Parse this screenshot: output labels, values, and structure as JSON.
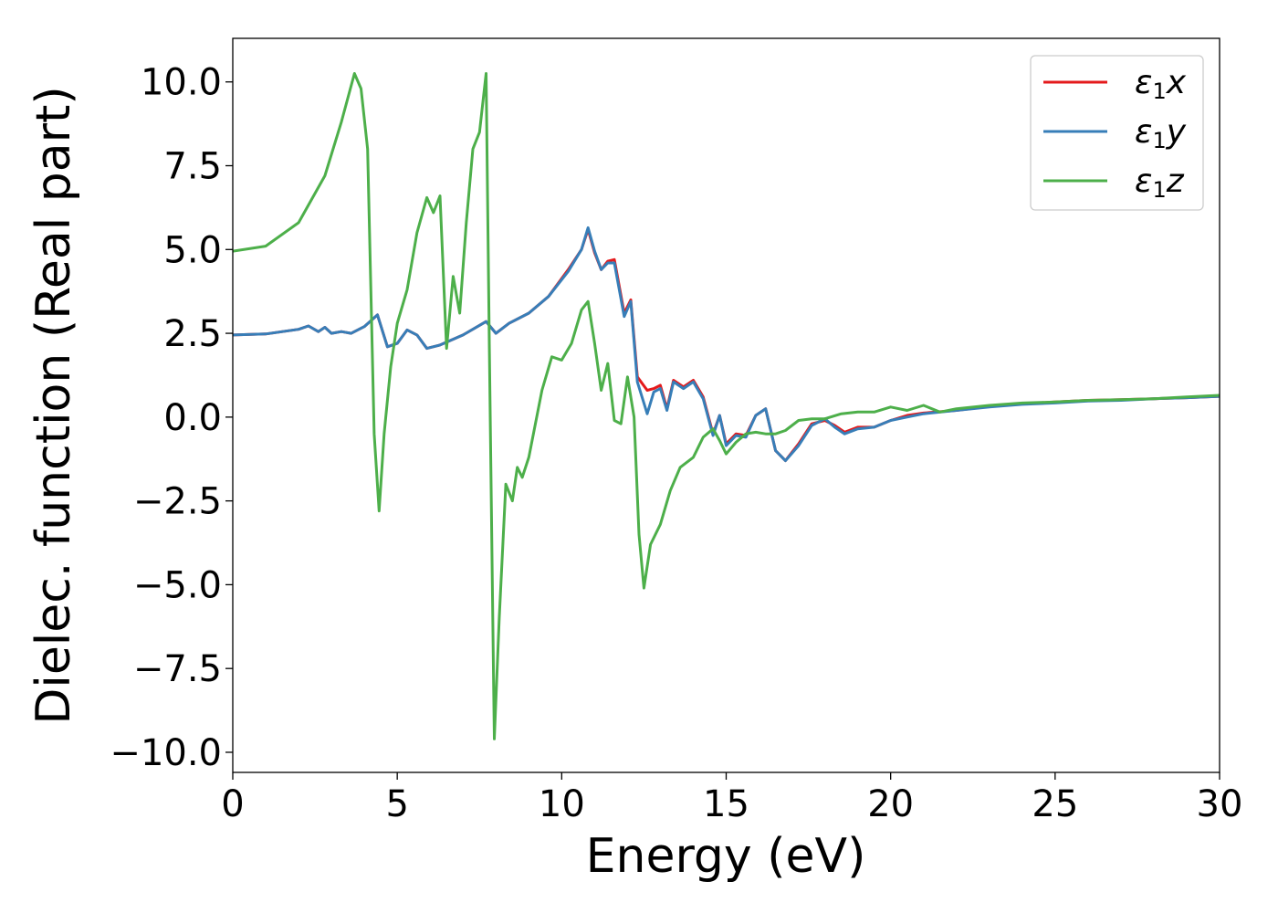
{
  "chart_data": {
    "type": "line",
    "xlabel": "Energy (eV)",
    "ylabel": "Dielec. function (Real part)",
    "xlim": [
      0,
      30
    ],
    "ylim": [
      -10.6,
      11.3
    ],
    "xticks": [
      0,
      5,
      10,
      15,
      20,
      25,
      30
    ],
    "xtick_labels": [
      "0",
      "5",
      "10",
      "15",
      "20",
      "25",
      "30"
    ],
    "yticks": [
      -10,
      -7.5,
      -5,
      -2.5,
      0,
      2.5,
      5,
      7.5,
      10
    ],
    "ytick_labels": [
      "−10.0",
      "−7.5",
      "−5.0",
      "−2.5",
      "0.0",
      "2.5",
      "5.0",
      "7.5",
      "10.0"
    ],
    "grid": false,
    "legend_position": "top-right",
    "series": [
      {
        "name": "ε₁x",
        "legend": {
          "base": "ε",
          "sub": "1",
          "var": "x"
        },
        "color": "#e41a1c",
        "x": [
          0,
          1,
          2,
          2.3,
          2.6,
          2.8,
          3.0,
          3.3,
          3.6,
          4.0,
          4.4,
          4.7,
          5.0,
          5.3,
          5.6,
          5.9,
          6.3,
          7.0,
          7.7,
          8.0,
          8.4,
          9.0,
          9.6,
          10.2,
          10.6,
          10.8,
          11.0,
          11.2,
          11.4,
          11.6,
          11.9,
          12.1,
          12.3,
          12.6,
          12.8,
          13.0,
          13.2,
          13.4,
          13.7,
          14.0,
          14.3,
          14.6,
          14.8,
          15.0,
          15.3,
          15.6,
          15.9,
          16.2,
          16.5,
          16.8,
          17.2,
          17.6,
          18.0,
          18.3,
          18.6,
          19.0,
          19.5,
          20.0,
          20.5,
          21.0,
          22.0,
          23.0,
          24.0,
          25.0,
          26.0,
          27.0,
          28.0,
          29.0,
          30.0
        ],
        "y": [
          2.45,
          2.48,
          2.62,
          2.72,
          2.55,
          2.68,
          2.5,
          2.55,
          2.5,
          2.7,
          3.05,
          2.1,
          2.2,
          2.6,
          2.45,
          2.05,
          2.15,
          2.45,
          2.85,
          2.5,
          2.8,
          3.1,
          3.6,
          4.4,
          5.0,
          5.6,
          4.9,
          4.4,
          4.65,
          4.7,
          3.1,
          3.5,
          1.2,
          0.8,
          0.85,
          0.95,
          0.25,
          1.1,
          0.9,
          1.1,
          0.6,
          -0.5,
          0.05,
          -0.8,
          -0.5,
          -0.55,
          0.05,
          0.25,
          -1.0,
          -1.3,
          -0.8,
          -0.2,
          -0.1,
          -0.25,
          -0.45,
          -0.3,
          -0.3,
          -0.1,
          0.05,
          0.12,
          0.2,
          0.32,
          0.4,
          0.45,
          0.5,
          0.52,
          0.55,
          0.58,
          0.62
        ]
      },
      {
        "name": "ε₁y",
        "legend": {
          "base": "ε",
          "sub": "1",
          "var": "y"
        },
        "color": "#377eb8",
        "x": [
          0,
          1,
          2,
          2.3,
          2.6,
          2.8,
          3.0,
          3.3,
          3.6,
          4.0,
          4.4,
          4.7,
          5.0,
          5.3,
          5.6,
          5.9,
          6.3,
          7.0,
          7.7,
          8.0,
          8.4,
          9.0,
          9.6,
          10.2,
          10.6,
          10.8,
          11.0,
          11.2,
          11.4,
          11.6,
          11.9,
          12.1,
          12.3,
          12.6,
          12.8,
          13.0,
          13.2,
          13.4,
          13.7,
          14.0,
          14.3,
          14.6,
          14.8,
          15.0,
          15.3,
          15.6,
          15.9,
          16.2,
          16.5,
          16.8,
          17.2,
          17.6,
          18.0,
          18.3,
          18.6,
          19.0,
          19.5,
          20.0,
          20.5,
          21.0,
          22.0,
          23.0,
          24.0,
          25.0,
          26.0,
          27.0,
          28.0,
          29.0,
          30.0
        ],
        "y": [
          2.45,
          2.48,
          2.62,
          2.72,
          2.55,
          2.68,
          2.5,
          2.55,
          2.5,
          2.7,
          3.05,
          2.1,
          2.2,
          2.6,
          2.45,
          2.05,
          2.15,
          2.45,
          2.85,
          2.5,
          2.8,
          3.1,
          3.6,
          4.35,
          5.0,
          5.65,
          4.95,
          4.4,
          4.6,
          4.6,
          3.0,
          3.45,
          1.05,
          0.1,
          0.75,
          0.85,
          0.2,
          1.05,
          0.85,
          1.05,
          0.55,
          -0.55,
          0.05,
          -0.85,
          -0.55,
          -0.6,
          0.05,
          0.25,
          -1.0,
          -1.3,
          -0.85,
          -0.25,
          -0.05,
          -0.3,
          -0.5,
          -0.35,
          -0.3,
          -0.1,
          0.0,
          0.1,
          0.2,
          0.3,
          0.38,
          0.42,
          0.48,
          0.5,
          0.55,
          0.58,
          0.62
        ]
      },
      {
        "name": "ε₁z",
        "legend": {
          "base": "ε",
          "sub": "1",
          "var": "z"
        },
        "color": "#4daf4a",
        "x": [
          0,
          1,
          2,
          2.8,
          3.3,
          3.7,
          3.9,
          4.1,
          4.3,
          4.45,
          4.6,
          4.8,
          5.0,
          5.3,
          5.6,
          5.9,
          6.1,
          6.3,
          6.5,
          6.7,
          6.9,
          7.1,
          7.3,
          7.5,
          7.7,
          7.8,
          7.95,
          8.1,
          8.3,
          8.5,
          8.65,
          8.8,
          9.0,
          9.2,
          9.4,
          9.7,
          10.0,
          10.3,
          10.6,
          10.8,
          11.0,
          11.2,
          11.4,
          11.6,
          11.8,
          12.0,
          12.2,
          12.35,
          12.5,
          12.7,
          13.0,
          13.3,
          13.6,
          14.0,
          14.3,
          14.6,
          14.8,
          15.0,
          15.3,
          15.6,
          15.9,
          16.2,
          16.5,
          16.8,
          17.2,
          17.6,
          18.0,
          18.5,
          19.0,
          19.5,
          20.0,
          20.5,
          21.0,
          21.5,
          22.0,
          23.0,
          24.0,
          25.0,
          26.0,
          27.0,
          28.0,
          29.0,
          30.0
        ],
        "y": [
          4.95,
          5.1,
          5.8,
          7.2,
          8.8,
          10.25,
          9.8,
          8.0,
          -0.5,
          -2.8,
          -0.5,
          1.5,
          2.8,
          3.8,
          5.5,
          6.55,
          6.1,
          6.6,
          2.05,
          4.2,
          3.1,
          5.8,
          8.0,
          8.5,
          10.25,
          2.0,
          -9.6,
          -6.0,
          -2.0,
          -2.5,
          -1.5,
          -1.8,
          -1.2,
          -0.2,
          0.8,
          1.8,
          1.7,
          2.2,
          3.2,
          3.45,
          2.2,
          0.8,
          1.6,
          -0.1,
          -0.2,
          1.2,
          0.0,
          -3.5,
          -5.1,
          -3.8,
          -3.2,
          -2.2,
          -1.5,
          -1.2,
          -0.6,
          -0.35,
          -0.7,
          -1.1,
          -0.75,
          -0.5,
          -0.45,
          -0.5,
          -0.5,
          -0.4,
          -0.1,
          -0.05,
          -0.05,
          0.1,
          0.15,
          0.15,
          0.3,
          0.2,
          0.35,
          0.15,
          0.25,
          0.35,
          0.42,
          0.45,
          0.5,
          0.52,
          0.55,
          0.6,
          0.65
        ]
      }
    ]
  }
}
